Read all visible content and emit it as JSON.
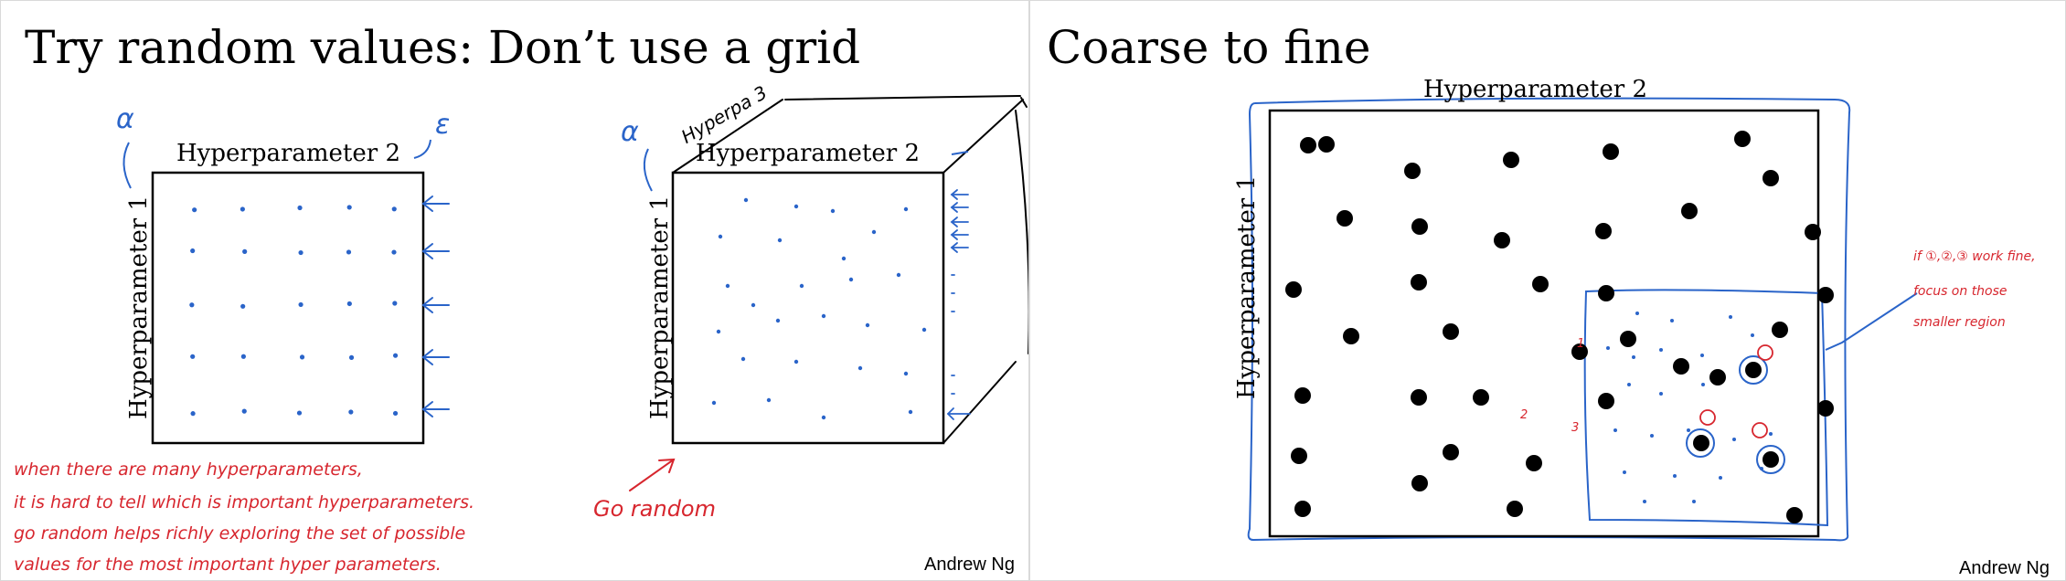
{
  "left_slide": {
    "title": "Try random values: Don’t use a grid",
    "grid_panel": {
      "x_label": "Hyperparameter 2",
      "y_label": "Hyperparameter 1",
      "top_symbol": "α",
      "corner_symbol": "ε"
    },
    "random_panel": {
      "x_label": "Hyperparameter 2",
      "y_label": "Hyperparameter 1",
      "top_symbol": "α",
      "depth_label": "Hyperpa 3"
    },
    "note_lines": [
      "when there are many hyperparameters,",
      "it is hard to tell which is important hyperparameters.",
      "go random helps richly exploring the set of possible",
      "values for the most important hyper parameters."
    ],
    "go_random_note": "Go random",
    "author": "Andrew Ng",
    "ink_color": "#2a64c9",
    "note_color": "#d7262e"
  },
  "right_slide": {
    "title": "Coarse to fine",
    "x_label": "Hyperparameter 2",
    "y_label": "Hyperparameter 1",
    "note_lines": [
      "if ①,②,③ work fine,",
      "focus on those",
      "smaller region"
    ],
    "markers": [
      "1",
      "2",
      "3"
    ],
    "author": "Andrew Ng",
    "ink_color": "#2a64c9",
    "note_color": "#d7262e"
  }
}
